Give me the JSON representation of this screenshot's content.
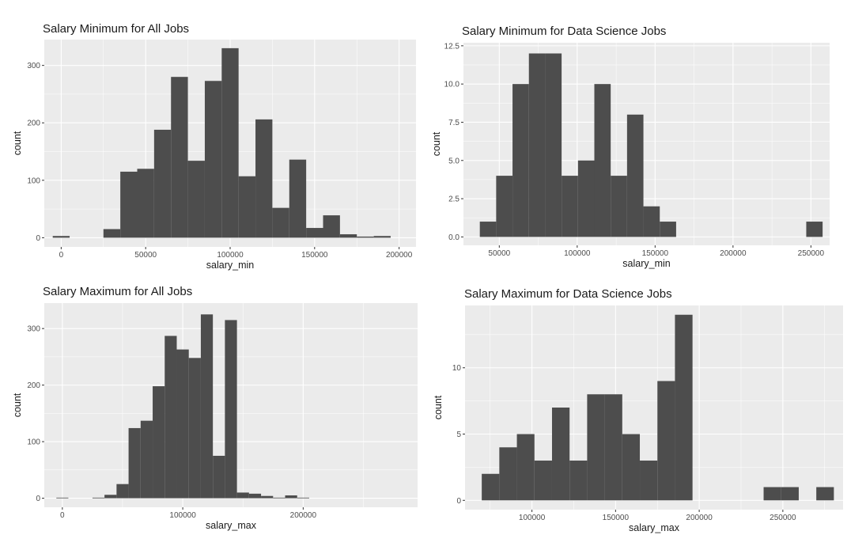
{
  "chart_data": [
    {
      "type": "bar",
      "title": "Salary Minimum for All Jobs",
      "xlabel": "salary_min",
      "ylabel": "count",
      "xlim": [
        -10000,
        210000
      ],
      "ylim": [
        -16,
        345
      ],
      "x_ticks": [
        0,
        50000,
        100000,
        150000,
        200000
      ],
      "y_ticks": [
        0,
        100,
        200,
        300
      ],
      "bins": [
        {
          "x0": -5000,
          "x1": 5000,
          "count": 3
        },
        {
          "x0": 25000,
          "x1": 35000,
          "count": 15
        },
        {
          "x0": 35000,
          "x1": 45000,
          "count": 115
        },
        {
          "x0": 45000,
          "x1": 55000,
          "count": 120
        },
        {
          "x0": 55000,
          "x1": 65000,
          "count": 188
        },
        {
          "x0": 65000,
          "x1": 75000,
          "count": 280
        },
        {
          "x0": 75000,
          "x1": 85000,
          "count": 134
        },
        {
          "x0": 85000,
          "x1": 95000,
          "count": 273
        },
        {
          "x0": 95000,
          "x1": 105000,
          "count": 330
        },
        {
          "x0": 105000,
          "x1": 115000,
          "count": 107
        },
        {
          "x0": 115000,
          "x1": 125000,
          "count": 206
        },
        {
          "x0": 125000,
          "x1": 135000,
          "count": 52
        },
        {
          "x0": 135000,
          "x1": 145000,
          "count": 136
        },
        {
          "x0": 145000,
          "x1": 155000,
          "count": 17
        },
        {
          "x0": 155000,
          "x1": 165000,
          "count": 39
        },
        {
          "x0": 165000,
          "x1": 175000,
          "count": 6
        },
        {
          "x0": 175000,
          "x1": 185000,
          "count": 2
        },
        {
          "x0": 185000,
          "x1": 195000,
          "count": 3
        }
      ]
    },
    {
      "type": "bar",
      "title": "Salary Minimum for Data Science Jobs",
      "xlabel": "salary_min",
      "ylabel": "count",
      "xlim": [
        27000,
        262000
      ],
      "ylim": [
        -0.55,
        12.7
      ],
      "x_ticks": [
        50000,
        100000,
        150000,
        200000,
        250000
      ],
      "y_ticks": [
        0.0,
        2.5,
        5.0,
        7.5,
        10.0,
        12.5
      ],
      "y_tick_labels": [
        "0.0",
        "2.5",
        "5.0",
        "7.5",
        "10.0",
        "12.5"
      ],
      "bins": [
        {
          "x0": 37500,
          "x1": 48000,
          "count": 1
        },
        {
          "x0": 48000,
          "x1": 58500,
          "count": 4
        },
        {
          "x0": 58500,
          "x1": 69000,
          "count": 10
        },
        {
          "x0": 69000,
          "x1": 79500,
          "count": 12
        },
        {
          "x0": 79500,
          "x1": 90000,
          "count": 12
        },
        {
          "x0": 90000,
          "x1": 100500,
          "count": 4
        },
        {
          "x0": 100500,
          "x1": 111000,
          "count": 5
        },
        {
          "x0": 111000,
          "x1": 121500,
          "count": 10
        },
        {
          "x0": 121500,
          "x1": 132000,
          "count": 4
        },
        {
          "x0": 132000,
          "x1": 142500,
          "count": 8
        },
        {
          "x0": 142500,
          "x1": 153000,
          "count": 2
        },
        {
          "x0": 153000,
          "x1": 163500,
          "count": 1
        },
        {
          "x0": 247000,
          "x1": 257500,
          "count": 1
        }
      ]
    },
    {
      "type": "bar",
      "title": "Salary Maximum for All Jobs",
      "xlabel": "salary_max",
      "ylabel": "count",
      "xlim": [
        -15000,
        295000
      ],
      "ylim": [
        -16,
        345
      ],
      "x_ticks": [
        0,
        100000,
        200000
      ],
      "y_ticks": [
        0,
        100,
        200,
        300
      ],
      "bins": [
        {
          "x0": -5000,
          "x1": 5000,
          "count": 1
        },
        {
          "x0": 25000,
          "x1": 35000,
          "count": 1
        },
        {
          "x0": 35000,
          "x1": 45000,
          "count": 6
        },
        {
          "x0": 45000,
          "x1": 55000,
          "count": 25
        },
        {
          "x0": 55000,
          "x1": 65000,
          "count": 124
        },
        {
          "x0": 65000,
          "x1": 75000,
          "count": 137
        },
        {
          "x0": 75000,
          "x1": 85000,
          "count": 198
        },
        {
          "x0": 85000,
          "x1": 95000,
          "count": 287
        },
        {
          "x0": 95000,
          "x1": 105000,
          "count": 263
        },
        {
          "x0": 105000,
          "x1": 115000,
          "count": 248
        },
        {
          "x0": 115000,
          "x1": 125000,
          "count": 325
        },
        {
          "x0": 125000,
          "x1": 135000,
          "count": 75
        },
        {
          "x0": 135000,
          "x1": 145000,
          "count": 315
        },
        {
          "x0": 145000,
          "x1": 155000,
          "count": 10
        },
        {
          "x0": 155000,
          "x1": 165000,
          "count": 8
        },
        {
          "x0": 165000,
          "x1": 175000,
          "count": 4
        },
        {
          "x0": 175000,
          "x1": 185000,
          "count": 1
        },
        {
          "x0": 185000,
          "x1": 195000,
          "count": 5
        },
        {
          "x0": 195000,
          "x1": 205000,
          "count": 1
        }
      ]
    },
    {
      "type": "bar",
      "title": "Salary Maximum for Data Science Jobs",
      "xlabel": "salary_max",
      "ylabel": "count",
      "xlim": [
        60000,
        286000
      ],
      "ylim": [
        -0.7,
        14.7
      ],
      "x_ticks": [
        100000,
        150000,
        200000,
        250000
      ],
      "y_ticks": [
        0,
        5,
        10
      ],
      "bins": [
        {
          "x0": 70000,
          "x1": 80500,
          "count": 2
        },
        {
          "x0": 80500,
          "x1": 91000,
          "count": 4
        },
        {
          "x0": 91000,
          "x1": 101500,
          "count": 5
        },
        {
          "x0": 101500,
          "x1": 112000,
          "count": 3
        },
        {
          "x0": 112000,
          "x1": 122500,
          "count": 7
        },
        {
          "x0": 122500,
          "x1": 133000,
          "count": 3
        },
        {
          "x0": 133000,
          "x1": 143500,
          "count": 8
        },
        {
          "x0": 143500,
          "x1": 154000,
          "count": 8
        },
        {
          "x0": 154000,
          "x1": 164500,
          "count": 5
        },
        {
          "x0": 164500,
          "x1": 175000,
          "count": 3
        },
        {
          "x0": 175000,
          "x1": 185500,
          "count": 9
        },
        {
          "x0": 185500,
          "x1": 196000,
          "count": 14
        },
        {
          "x0": 238500,
          "x1": 249000,
          "count": 1
        },
        {
          "x0": 249000,
          "x1": 259500,
          "count": 1
        },
        {
          "x0": 270000,
          "x1": 280500,
          "count": 1
        }
      ]
    }
  ]
}
